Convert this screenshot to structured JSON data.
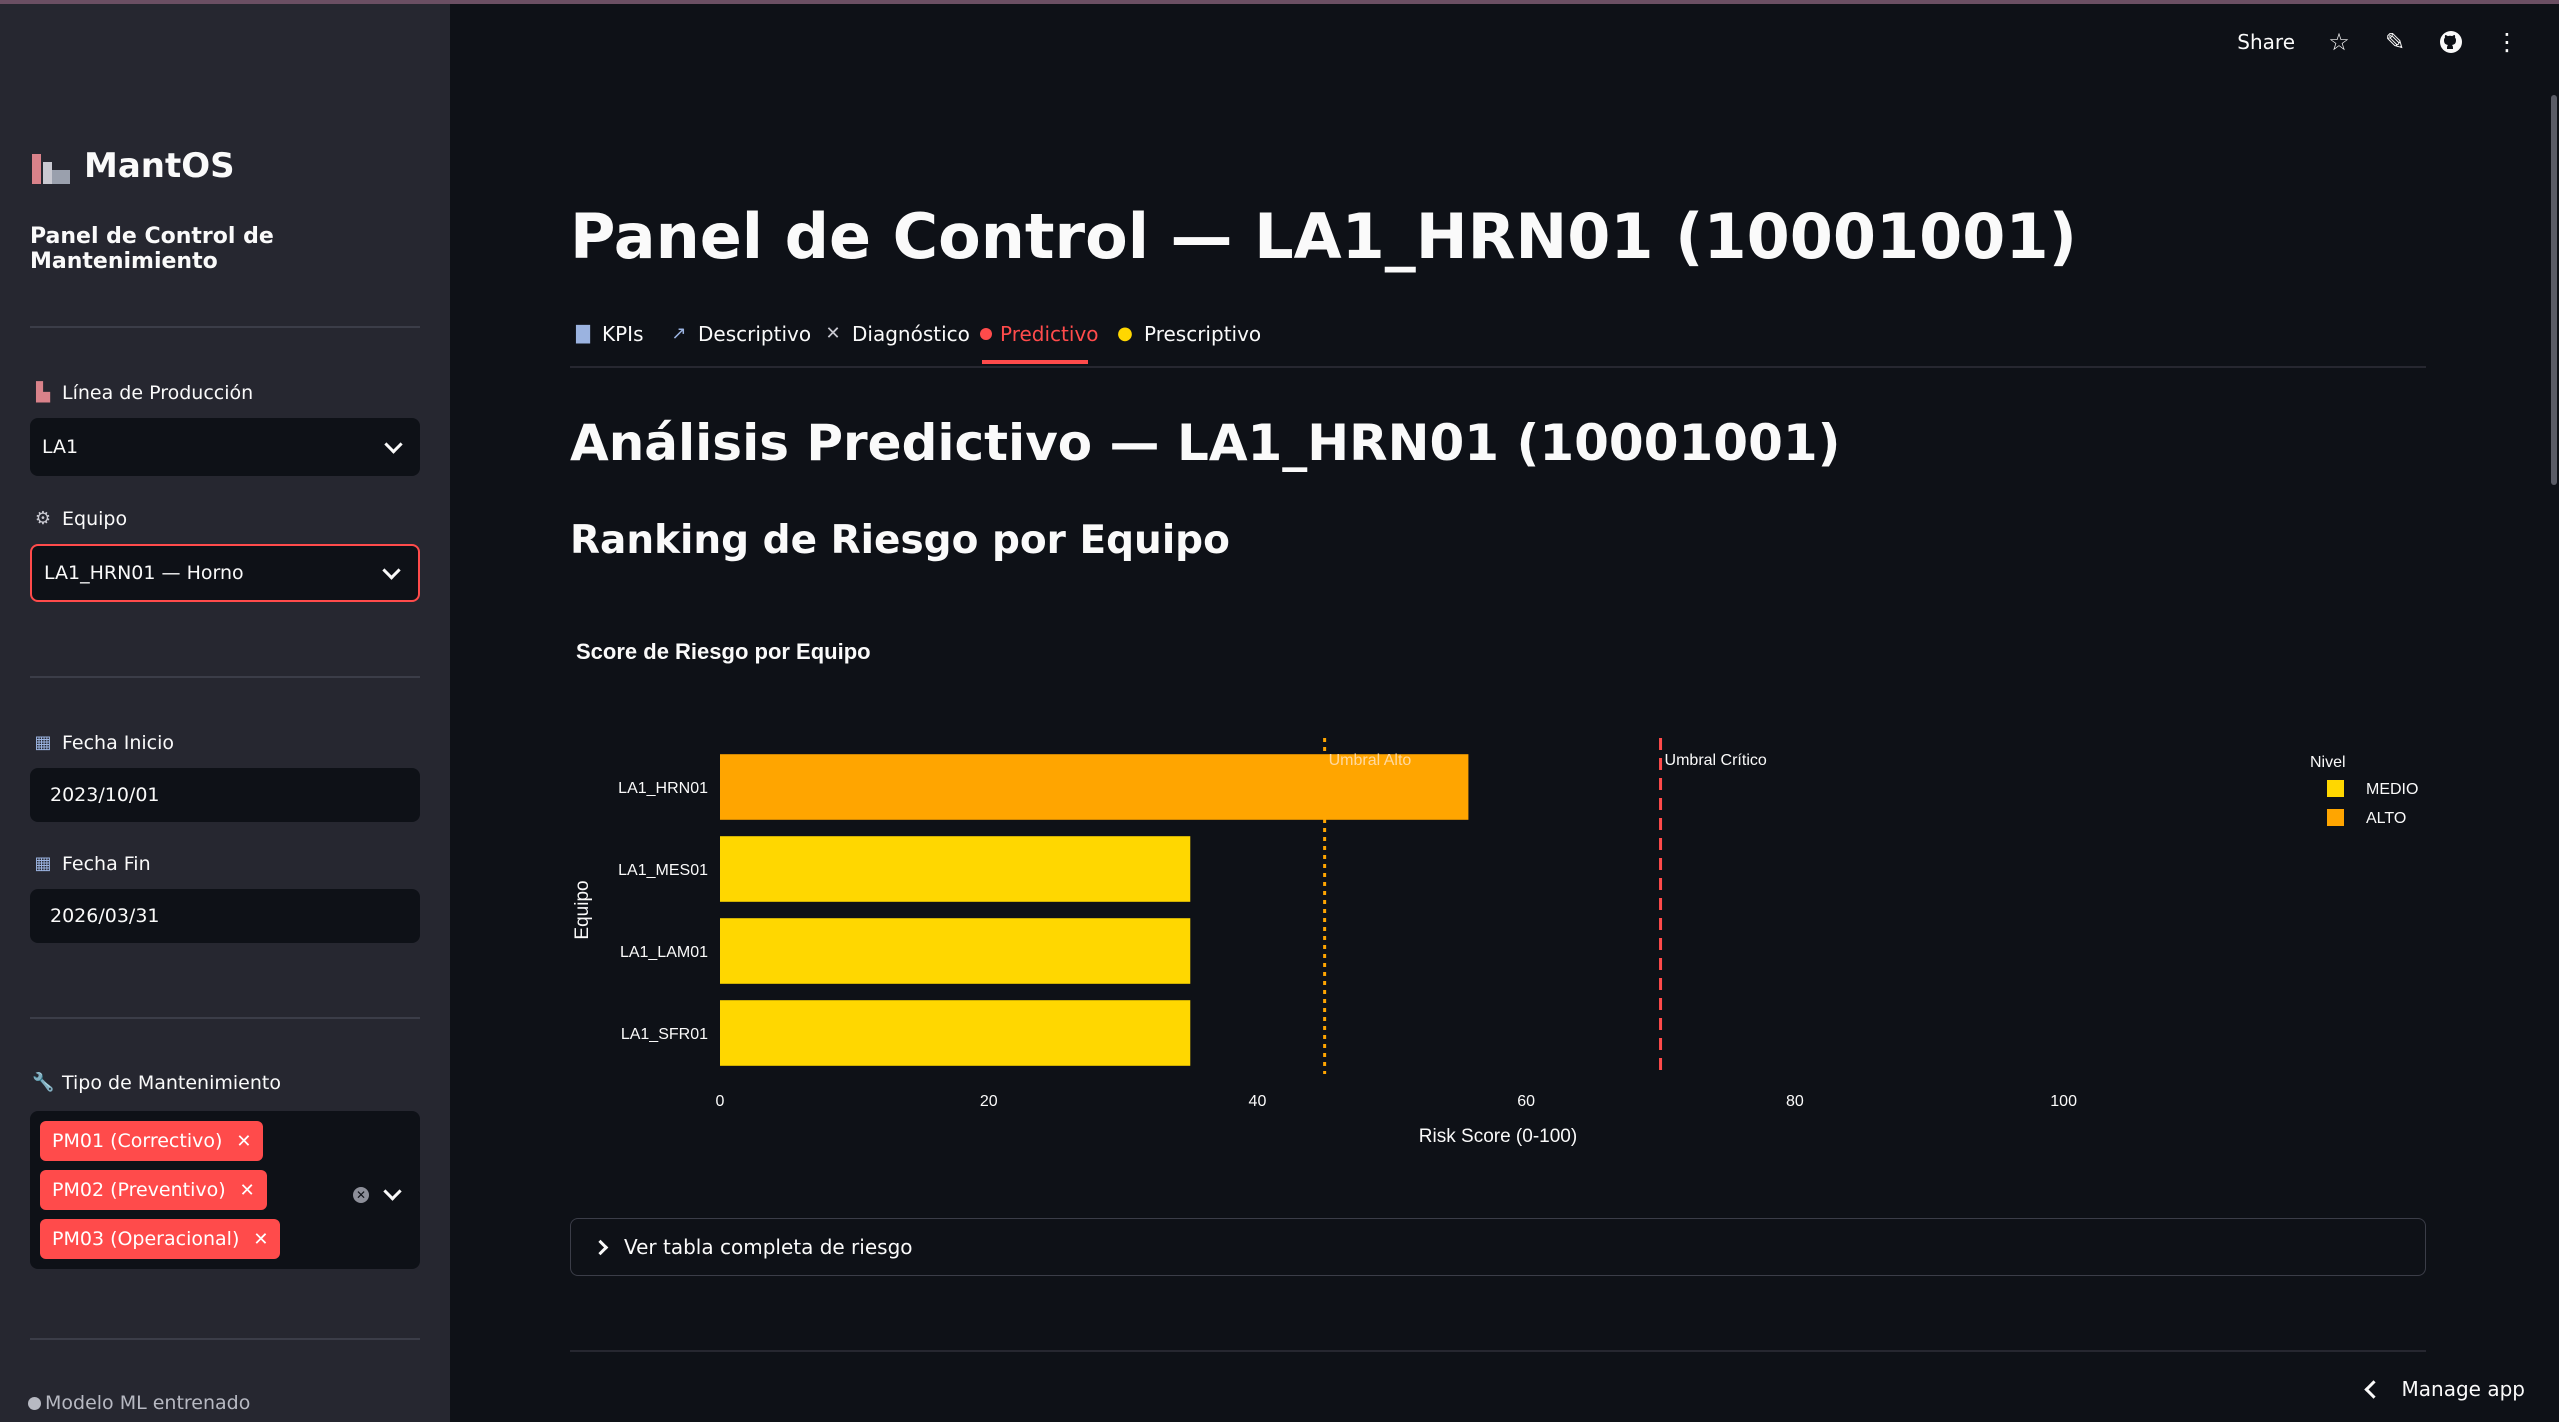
{
  "sidebar": {
    "app_title": "MantOS",
    "subtitle": "Panel de Control de Mantenimiento",
    "linea": {
      "label": "Línea de Producción",
      "value": "LA1"
    },
    "equipo": {
      "label": "Equipo",
      "value": "LA1_HRN01 — Horno"
    },
    "fecha_inicio": {
      "label": "Fecha Inicio",
      "value": "2023/10/01"
    },
    "fecha_fin": {
      "label": "Fecha Fin",
      "value": "2026/03/31"
    },
    "tipo": {
      "label": "Tipo de Mantenimiento",
      "tags": [
        "PM01 (Correctivo)",
        "PM02 (Preventivo)",
        "PM03 (Operacional)"
      ]
    },
    "footer": "Modelo ML entrenado"
  },
  "toolbar": {
    "share": "Share"
  },
  "main": {
    "title": "Panel de Control — LA1_HRN01 (10001001)",
    "tabs": [
      {
        "label": "KPIs",
        "icon": "bar-chart-icon"
      },
      {
        "label": "Descriptivo",
        "icon": "line-chart-icon"
      },
      {
        "label": "Diagnóstico",
        "icon": "tools-icon"
      },
      {
        "label": "Predictivo",
        "icon": "crystal-ball-icon"
      },
      {
        "label": "Prescriptivo",
        "icon": "lightbulb-icon"
      }
    ],
    "active_tab": "Predictivo",
    "heading": "Análisis Predictivo — LA1_HRN01 (10001001)",
    "subheading": "Ranking de Riesgo por Equipo",
    "expander": "Ver tabla completa de riesgo",
    "manage": "Manage app"
  },
  "chart_data": {
    "type": "bar",
    "orientation": "horizontal",
    "title": "Score de Riesgo por Equipo",
    "xlabel": "Risk Score (0-100)",
    "ylabel": "Equipo",
    "xlim": [
      0,
      110
    ],
    "xticks": [
      0,
      20,
      40,
      60,
      80,
      100
    ],
    "categories": [
      "LA1_HRN01",
      "LA1_MES01",
      "LA1_LAM01",
      "LA1_SFR01"
    ],
    "values": [
      55.7,
      35,
      35,
      35
    ],
    "levels": [
      "ALTO",
      "MEDIO",
      "MEDIO",
      "MEDIO"
    ],
    "level_colors": {
      "MEDIO": "#ffd700",
      "ALTO": "#ffa500"
    },
    "thresholds": [
      {
        "name": "Umbral Alto",
        "value": 45,
        "color": "#ffa500",
        "style": "dotted"
      },
      {
        "name": "Umbral Crítico",
        "value": 70,
        "color": "#ff4b4b",
        "style": "dashed"
      }
    ],
    "legend": {
      "title": "Nivel",
      "entries": [
        "MEDIO",
        "ALTO"
      ],
      "placement": "top-right"
    }
  }
}
